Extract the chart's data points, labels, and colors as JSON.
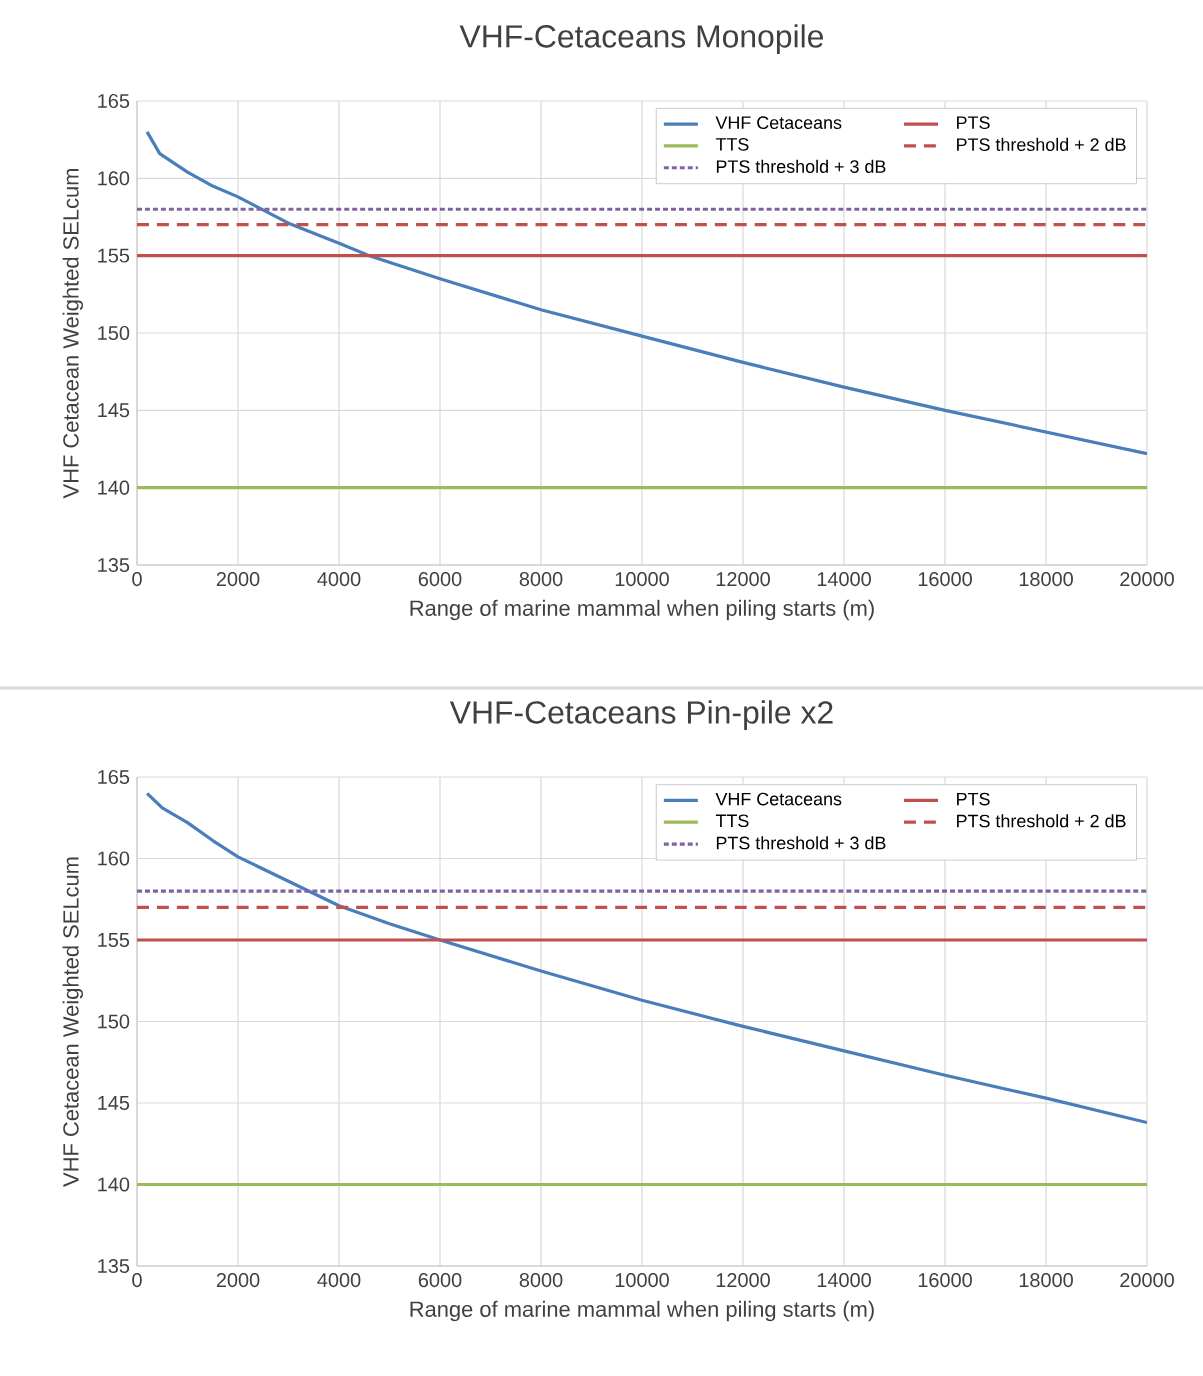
{
  "chart_data": [
    {
      "type": "line",
      "title": "VHF-Cetaceans Monopile",
      "xlabel": "Range of marine mammal when piling starts (m)",
      "ylabel": "VHF Cetacean Weighted SELcum",
      "xlim": [
        0,
        20000
      ],
      "xticks": [
        0,
        2000,
        4000,
        6000,
        8000,
        10000,
        12000,
        14000,
        16000,
        18000,
        20000
      ],
      "ylim": [
        135,
        165
      ],
      "yticks": [
        135,
        140,
        145,
        150,
        155,
        160,
        165
      ],
      "grid": true,
      "legend": "top right",
      "series": [
        {
          "name": "VHF Cetaceans",
          "color": "#4a7ebb",
          "line_style": "solid",
          "x": [
            200,
            450,
            1000,
            1500,
            2000,
            3000,
            4000,
            4600,
            6000,
            8000,
            10000,
            12000,
            14000,
            16000,
            18000,
            20000
          ],
          "values": [
            163.0,
            161.6,
            160.4,
            159.5,
            158.8,
            157.1,
            155.8,
            155.0,
            153.5,
            151.5,
            149.8,
            148.1,
            146.5,
            145.0,
            143.6,
            142.2
          ]
        },
        {
          "name": "PTS",
          "color": "#c0504d",
          "line_style": "solid",
          "x": [
            0,
            20000
          ],
          "values": [
            155,
            155
          ]
        },
        {
          "name": "TTS",
          "color": "#9bbb59",
          "line_style": "solid",
          "x": [
            0,
            20000
          ],
          "values": [
            140,
            140
          ]
        },
        {
          "name": "PTS threshold + 2 dB",
          "color": "#c0504d",
          "line_style": "dashed",
          "x": [
            0,
            20000
          ],
          "values": [
            157,
            157
          ]
        },
        {
          "name": "PTS threshold + 3 dB",
          "color": "#8064a2",
          "line_style": "dotted",
          "x": [
            0,
            20000
          ],
          "values": [
            158,
            158
          ]
        }
      ]
    },
    {
      "type": "line",
      "title": "VHF-Cetaceans Pin-pile x2",
      "xlabel": "Range of marine mammal when piling starts (m)",
      "ylabel": "VHF Cetacean Weighted SELcum",
      "xlim": [
        0,
        20000
      ],
      "xticks": [
        0,
        2000,
        4000,
        6000,
        8000,
        10000,
        12000,
        14000,
        16000,
        18000,
        20000
      ],
      "ylim": [
        135,
        165
      ],
      "yticks": [
        135,
        140,
        145,
        150,
        155,
        160,
        165
      ],
      "grid": true,
      "legend": "top right",
      "series": [
        {
          "name": "VHF Cetaceans",
          "color": "#4a7ebb",
          "line_style": "solid",
          "x": [
            200,
            500,
            1000,
            1500,
            2000,
            3000,
            4000,
            5000,
            6000,
            8000,
            10000,
            12000,
            14000,
            16000,
            18000,
            20000
          ],
          "values": [
            164.0,
            163.1,
            162.2,
            161.1,
            160.1,
            158.6,
            157.1,
            156.0,
            155.0,
            153.1,
            151.3,
            149.7,
            148.2,
            146.7,
            145.3,
            143.8
          ]
        },
        {
          "name": "PTS",
          "color": "#c0504d",
          "line_style": "solid",
          "x": [
            0,
            20000
          ],
          "values": [
            155,
            155
          ]
        },
        {
          "name": "TTS",
          "color": "#9bbb59",
          "line_style": "solid",
          "x": [
            0,
            20000
          ],
          "values": [
            140,
            140
          ]
        },
        {
          "name": "PTS threshold + 2 dB",
          "color": "#c0504d",
          "line_style": "dashed",
          "x": [
            0,
            20000
          ],
          "values": [
            157,
            157
          ]
        },
        {
          "name": "PTS threshold + 3 dB",
          "color": "#8064a2",
          "line_style": "dotted",
          "x": [
            0,
            20000
          ],
          "values": [
            158,
            158
          ]
        }
      ]
    }
  ]
}
